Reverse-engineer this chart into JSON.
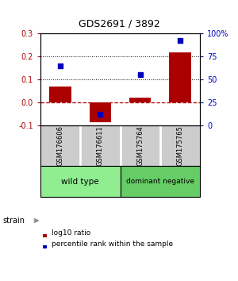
{
  "title": "GDS2691 / 3892",
  "samples": [
    "GSM176606",
    "GSM176611",
    "GSM175764",
    "GSM175765"
  ],
  "log10_ratio": [
    0.07,
    -0.085,
    0.02,
    0.22
  ],
  "percentile_rank_pct": [
    65,
    12,
    55,
    93
  ],
  "groups": [
    {
      "label": "wild type",
      "samples": [
        0,
        1
      ],
      "color": "#90EE90"
    },
    {
      "label": "dominant negative",
      "samples": [
        2,
        3
      ],
      "color": "#66CC66"
    }
  ],
  "bar_color": "#AA0000",
  "dot_color": "#0000BB",
  "ylim_left": [
    -0.1,
    0.3
  ],
  "ylim_right": [
    0,
    100
  ],
  "yticks_left": [
    -0.1,
    0.0,
    0.1,
    0.2,
    0.3
  ],
  "yticks_right": [
    0,
    25,
    50,
    75,
    100
  ],
  "ytick_labels_right": [
    "0",
    "25",
    "50",
    "75",
    "100%"
  ],
  "background_color": "#ffffff",
  "sample_bg_color": "#cccccc",
  "strain_label": "strain",
  "legend_red": "log10 ratio",
  "legend_blue": "percentile rank within the sample"
}
